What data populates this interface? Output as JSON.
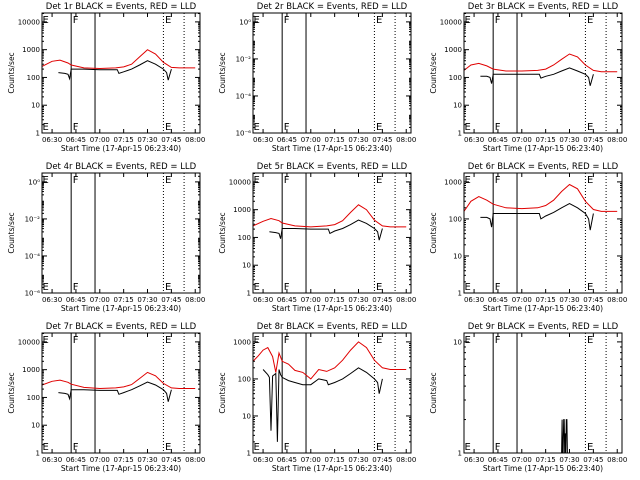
{
  "chart_data": [
    {
      "type": "line",
      "title": "Det 1r BLACK = Events, RED = LLD",
      "xlabel": "Start Time (17-Apr-15 06:23:40)",
      "ylabel": "Counts/sec",
      "yscale": "log",
      "yticks": [
        "1",
        "10",
        "100",
        "1000",
        "10000"
      ],
      "xticks": [
        "06:30",
        "06:45",
        "07:00",
        "07:15",
        "07:30",
        "07:45",
        "08:00"
      ],
      "x_range": [
        "06:23:40",
        "08:03:00"
      ],
      "vlines_solid": [
        "06:42:00",
        "06:57:00"
      ],
      "vlines_dotted": [
        "07:40:00",
        "07:53:00"
      ],
      "annotations": [
        {
          "text": "E",
          "at": "06:24:00"
        },
        {
          "text": "F",
          "at": "06:43:00"
        },
        {
          "text": "E",
          "at": "07:41:00"
        }
      ],
      "series": [
        {
          "color": "red",
          "x": [
            "06:23:40",
            "06:30:00",
            "06:35:00",
            "06:40:00",
            "06:42:00",
            "06:50:00",
            "07:00:00",
            "07:10:00",
            "07:15:00",
            "07:20:00",
            "07:25:00",
            "07:30:00",
            "07:35:00",
            "07:40:00",
            "07:45:00",
            "07:50:00",
            "08:00:00"
          ],
          "y": [
            250,
            380,
            420,
            330,
            280,
            220,
            210,
            220,
            240,
            300,
            550,
            1000,
            700,
            350,
            230,
            220,
            220
          ]
        },
        {
          "color": "black",
          "x": [
            "06:34:00",
            "06:38:00",
            "06:40:00",
            "06:41:00",
            "06:42:00",
            "06:50:00",
            "07:00:00",
            "07:11:00",
            "07:12:00",
            "07:15:00",
            "07:20:00",
            "07:25:00",
            "07:30:00",
            "07:35:00",
            "07:40:00",
            "07:42:00",
            "07:43:00",
            "07:45:00"
          ],
          "y": [
            150,
            140,
            130,
            90,
            200,
            200,
            190,
            190,
            140,
            160,
            200,
            280,
            400,
            300,
            200,
            150,
            80,
            200
          ]
        }
      ]
    },
    {
      "type": "line",
      "title": "Det 2r BLACK = Events, RED = LLD",
      "xlabel": "Start Time (17-Apr-15 06:23:40)",
      "ylabel": "Counts/sec",
      "yscale": "log",
      "yticks": [
        "10⁰",
        "10⁻²",
        "10⁻⁴",
        "10⁻⁶"
      ],
      "xticks": [
        "06:30",
        "06:45",
        "07:00",
        "07:15",
        "07:30",
        "07:45",
        "08:00"
      ],
      "x_range": [
        "06:23:40",
        "08:03:00"
      ],
      "vlines_solid": [
        "06:42:00",
        "06:57:00"
      ],
      "vlines_dotted": [
        "07:40:00",
        "07:53:00"
      ],
      "annotations": [
        {
          "text": "E",
          "at": "06:24:00"
        },
        {
          "text": "F",
          "at": "06:43:00"
        },
        {
          "text": "E",
          "at": "07:41:00"
        }
      ],
      "series": []
    },
    {
      "type": "line",
      "title": "Det 3r BLACK = Events, RED = LLD",
      "xlabel": "Start Time (17-Apr-15 06:23:40)",
      "ylabel": "Counts/sec",
      "yscale": "log",
      "yticks": [
        "1",
        "10",
        "100",
        "1000",
        "10000"
      ],
      "xticks": [
        "06:30",
        "06:45",
        "07:00",
        "07:15",
        "07:30",
        "07:45",
        "08:00"
      ],
      "x_range": [
        "06:23:40",
        "08:03:00"
      ],
      "vlines_solid": [
        "06:42:00",
        "06:57:00"
      ],
      "vlines_dotted": [
        "07:40:00",
        "07:53:00"
      ],
      "annotations": [
        {
          "text": "E",
          "at": "06:24:00"
        },
        {
          "text": "F",
          "at": "06:43:00"
        },
        {
          "text": "E",
          "at": "07:41:00"
        }
      ],
      "series": [
        {
          "color": "red",
          "x": [
            "06:23:40",
            "06:28:00",
            "06:33:00",
            "06:38:00",
            "06:42:00",
            "06:50:00",
            "07:00:00",
            "07:10:00",
            "07:15:00",
            "07:20:00",
            "07:25:00",
            "07:30:00",
            "07:35:00",
            "07:40:00",
            "07:45:00",
            "07:50:00",
            "08:00:00"
          ],
          "y": [
            180,
            280,
            320,
            260,
            200,
            170,
            170,
            180,
            200,
            280,
            450,
            700,
            550,
            280,
            180,
            160,
            160
          ]
        },
        {
          "color": "black",
          "x": [
            "06:34:00",
            "06:38:00",
            "06:40:00",
            "06:41:00",
            "06:42:00",
            "06:50:00",
            "07:00:00",
            "07:11:00",
            "07:12:00",
            "07:15:00",
            "07:20:00",
            "07:25:00",
            "07:30:00",
            "07:35:00",
            "07:40:00",
            "07:42:00",
            "07:43:00",
            "07:45:00"
          ],
          "y": [
            110,
            110,
            100,
            60,
            130,
            130,
            130,
            130,
            95,
            110,
            130,
            170,
            220,
            170,
            130,
            100,
            50,
            130
          ]
        }
      ]
    },
    {
      "type": "line",
      "title": "Det 4r BLACK = Events, RED = LLD",
      "xlabel": "Start Time (17-Apr-15 06:23:40)",
      "ylabel": "Counts/sec",
      "yscale": "log",
      "yticks": [
        "10⁰",
        "10⁻²",
        "10⁻⁴",
        "10⁻⁶"
      ],
      "xticks": [
        "06:30",
        "06:45",
        "07:00",
        "07:15",
        "07:30",
        "07:45",
        "08:00"
      ],
      "x_range": [
        "06:23:40",
        "08:03:00"
      ],
      "vlines_solid": [
        "06:42:00",
        "06:57:00"
      ],
      "vlines_dotted": [
        "07:40:00",
        "07:53:00"
      ],
      "annotations": [
        {
          "text": "E",
          "at": "06:24:00"
        },
        {
          "text": "F",
          "at": "06:43:00"
        },
        {
          "text": "E",
          "at": "07:41:00"
        }
      ],
      "series": []
    },
    {
      "type": "line",
      "title": "Det 5r BLACK = Events, RED = LLD",
      "xlabel": "Start Time (17-Apr-15 06:23:40)",
      "ylabel": "Counts/sec",
      "yscale": "log",
      "yticks": [
        "1",
        "10",
        "100",
        "1000",
        "10000"
      ],
      "xticks": [
        "06:30",
        "06:45",
        "07:00",
        "07:15",
        "07:30",
        "07:45",
        "08:00"
      ],
      "x_range": [
        "06:23:40",
        "08:03:00"
      ],
      "vlines_solid": [
        "06:42:00",
        "06:57:00"
      ],
      "vlines_dotted": [
        "07:40:00",
        "07:53:00"
      ],
      "annotations": [
        {
          "text": "E",
          "at": "06:24:00"
        },
        {
          "text": "F",
          "at": "06:43:00"
        },
        {
          "text": "E",
          "at": "07:41:00"
        }
      ],
      "series": [
        {
          "color": "red",
          "x": [
            "06:23:40",
            "06:30:00",
            "06:35:00",
            "06:40:00",
            "06:42:00",
            "06:50:00",
            "07:00:00",
            "07:10:00",
            "07:15:00",
            "07:20:00",
            "07:25:00",
            "07:30:00",
            "07:35:00",
            "07:40:00",
            "07:45:00",
            "07:50:00",
            "08:00:00"
          ],
          "y": [
            260,
            380,
            480,
            400,
            330,
            260,
            240,
            260,
            290,
            400,
            800,
            1500,
            1000,
            420,
            260,
            240,
            240
          ]
        },
        {
          "color": "black",
          "x": [
            "06:34:00",
            "06:38:00",
            "06:40:00",
            "06:41:00",
            "06:42:00",
            "06:50:00",
            "07:00:00",
            "07:11:00",
            "07:12:00",
            "07:15:00",
            "07:20:00",
            "07:25:00",
            "07:30:00",
            "07:35:00",
            "07:40:00",
            "07:42:00",
            "07:43:00",
            "07:45:00"
          ],
          "y": [
            160,
            150,
            140,
            90,
            210,
            210,
            200,
            200,
            140,
            170,
            210,
            290,
            420,
            320,
            210,
            160,
            80,
            210
          ]
        }
      ]
    },
    {
      "type": "line",
      "title": "Det 6r BLACK = Events, RED = LLD",
      "xlabel": "Start Time (17-Apr-15 06:23:40)",
      "ylabel": "Counts/sec",
      "yscale": "log",
      "yticks": [
        "1",
        "10",
        "100",
        "1000"
      ],
      "xticks": [
        "06:30",
        "06:45",
        "07:00",
        "07:15",
        "07:30",
        "07:45",
        "08:00"
      ],
      "x_range": [
        "06:23:40",
        "08:03:00"
      ],
      "vlines_solid": [
        "06:42:00",
        "06:57:00"
      ],
      "vlines_dotted": [
        "07:40:00",
        "07:53:00"
      ],
      "annotations": [
        {
          "text": "E",
          "at": "06:24:00"
        },
        {
          "text": "F",
          "at": "06:43:00"
        },
        {
          "text": "E",
          "at": "07:41:00"
        }
      ],
      "series": [
        {
          "color": "red",
          "x": [
            "06:23:40",
            "06:28:00",
            "06:33:00",
            "06:38:00",
            "06:42:00",
            "06:50:00",
            "07:00:00",
            "07:10:00",
            "07:15:00",
            "07:20:00",
            "07:25:00",
            "07:30:00",
            "07:35:00",
            "07:40:00",
            "07:45:00",
            "07:50:00",
            "08:00:00"
          ],
          "y": [
            160,
            300,
            400,
            320,
            250,
            200,
            190,
            200,
            230,
            320,
            550,
            850,
            650,
            300,
            180,
            160,
            160
          ]
        },
        {
          "color": "black",
          "x": [
            "06:34:00",
            "06:38:00",
            "06:40:00",
            "06:41:00",
            "06:42:00",
            "06:50:00",
            "07:00:00",
            "07:11:00",
            "07:12:00",
            "07:15:00",
            "07:20:00",
            "07:25:00",
            "07:30:00",
            "07:35:00",
            "07:40:00",
            "07:42:00",
            "07:43:00",
            "07:45:00"
          ],
          "y": [
            110,
            110,
            100,
            60,
            140,
            140,
            140,
            140,
            100,
            120,
            150,
            200,
            260,
            200,
            140,
            100,
            50,
            140
          ]
        }
      ]
    },
    {
      "type": "line",
      "title": "Det 7r BLACK = Events, RED = LLD",
      "xlabel": "Start Time (17-Apr-15 06:23:40)",
      "ylabel": "Counts/sec",
      "yscale": "log",
      "yticks": [
        "1",
        "10",
        "100",
        "1000",
        "10000"
      ],
      "xticks": [
        "06:30",
        "06:45",
        "07:00",
        "07:15",
        "07:30",
        "07:45",
        "08:00"
      ],
      "x_range": [
        "06:23:40",
        "08:03:00"
      ],
      "vlines_solid": [
        "06:42:00",
        "06:57:00"
      ],
      "vlines_dotted": [
        "07:40:00",
        "07:53:00"
      ],
      "annotations": [
        {
          "text": "E",
          "at": "06:24:00"
        },
        {
          "text": "F",
          "at": "06:43:00"
        },
        {
          "text": "E",
          "at": "07:41:00"
        }
      ],
      "series": [
        {
          "color": "red",
          "x": [
            "06:23:40",
            "06:30:00",
            "06:35:00",
            "06:40:00",
            "06:42:00",
            "06:50:00",
            "07:00:00",
            "07:10:00",
            "07:15:00",
            "07:20:00",
            "07:25:00",
            "07:30:00",
            "07:35:00",
            "07:40:00",
            "07:45:00",
            "07:50:00",
            "08:00:00"
          ],
          "y": [
            280,
            380,
            420,
            350,
            300,
            230,
            210,
            220,
            240,
            290,
            480,
            800,
            600,
            320,
            220,
            210,
            210
          ]
        },
        {
          "color": "black",
          "x": [
            "06:34:00",
            "06:38:00",
            "06:40:00",
            "06:41:00",
            "06:42:00",
            "06:50:00",
            "07:00:00",
            "07:11:00",
            "07:12:00",
            "07:15:00",
            "07:20:00",
            "07:25:00",
            "07:30:00",
            "07:35:00",
            "07:40:00",
            "07:42:00",
            "07:43:00",
            "07:45:00"
          ],
          "y": [
            150,
            140,
            130,
            90,
            190,
            190,
            180,
            180,
            130,
            150,
            190,
            260,
            360,
            280,
            190,
            140,
            70,
            190
          ]
        }
      ]
    },
    {
      "type": "line",
      "title": "Det 8r BLACK = Events, RED = LLD",
      "xlabel": "Start Time (17-Apr-15 06:23:40)",
      "ylabel": "Counts/sec",
      "yscale": "log",
      "yticks": [
        "1",
        "10",
        "100",
        "1000"
      ],
      "xticks": [
        "06:30",
        "06:45",
        "07:00",
        "07:15",
        "07:30",
        "07:45",
        "08:00"
      ],
      "x_range": [
        "06:23:40",
        "08:03:00"
      ],
      "vlines_solid": [
        "06:42:00",
        "06:57:00"
      ],
      "vlines_dotted": [
        "07:40:00",
        "07:53:00"
      ],
      "annotations": [
        {
          "text": "E",
          "at": "06:24:00"
        },
        {
          "text": "F",
          "at": "06:43:00"
        },
        {
          "text": "E",
          "at": "07:41:00"
        }
      ],
      "series": [
        {
          "color": "red",
          "x": [
            "06:23:40",
            "06:27:00",
            "06:30:00",
            "06:33:00",
            "06:36:00",
            "06:38:00",
            "06:40:00",
            "06:42:00",
            "06:46:00",
            "06:50:00",
            "06:55:00",
            "07:00:00",
            "07:05:00",
            "07:10:00",
            "07:15:00",
            "07:20:00",
            "07:25:00",
            "07:30:00",
            "07:35:00",
            "07:40:00",
            "07:45:00",
            "07:50:00",
            "08:00:00"
          ],
          "y": [
            300,
            420,
            600,
            700,
            400,
            150,
            500,
            300,
            250,
            170,
            150,
            100,
            180,
            160,
            200,
            320,
            600,
            1000,
            700,
            320,
            200,
            180,
            180
          ]
        },
        {
          "color": "black",
          "x": [
            "06:30:00",
            "06:33:00",
            "06:34:00",
            "06:35:00",
            "06:36:00",
            "06:38:00",
            "06:39:00",
            "06:40:00",
            "06:41:00",
            "06:42:00",
            "06:46:00",
            "06:50:00",
            "06:55:00",
            "07:00:00",
            "07:05:00",
            "07:10:00",
            "07:11:00",
            "07:15:00",
            "07:20:00",
            "07:25:00",
            "07:30:00",
            "07:35:00",
            "07:40:00",
            "07:42:00",
            "07:43:00",
            "07:45:00"
          ],
          "y": [
            180,
            130,
            110,
            4,
            120,
            140,
            2,
            180,
            130,
            110,
            90,
            80,
            70,
            70,
            100,
            90,
            70,
            80,
            100,
            140,
            200,
            150,
            100,
            80,
            40,
            100
          ]
        }
      ]
    },
    {
      "type": "line",
      "title": "Det 9r BLACK = Events, RED = LLD",
      "xlabel": "Start Time (17-Apr-15 06:23:40)",
      "ylabel": "Counts/sec",
      "yscale": "log",
      "yticks": [
        "1",
        "10"
      ],
      "xticks": [
        "06:30",
        "06:45",
        "07:00",
        "07:15",
        "07:30",
        "07:45",
        "08:00"
      ],
      "x_range": [
        "06:23:40",
        "08:03:00"
      ],
      "vlines_solid": [
        "06:42:00",
        "06:57:00"
      ],
      "vlines_dotted": [
        "07:40:00",
        "07:53:00"
      ],
      "annotations": [
        {
          "text": "E",
          "at": "06:24:00"
        },
        {
          "text": "F",
          "at": "06:43:00"
        },
        {
          "text": "E",
          "at": "07:41:00"
        }
      ],
      "series": [
        {
          "color": "black",
          "x": [
            "07:25:00",
            "07:25:20",
            "07:25:40",
            "07:26:00",
            "07:26:20",
            "07:26:40",
            "07:27:00",
            "07:27:20",
            "07:27:40",
            "07:28:00",
            "07:28:20",
            "07:28:40",
            "07:29:00"
          ],
          "y": [
            1,
            2,
            1,
            1,
            2,
            2,
            1,
            1.5,
            1,
            2,
            2,
            1,
            1
          ]
        }
      ]
    }
  ]
}
